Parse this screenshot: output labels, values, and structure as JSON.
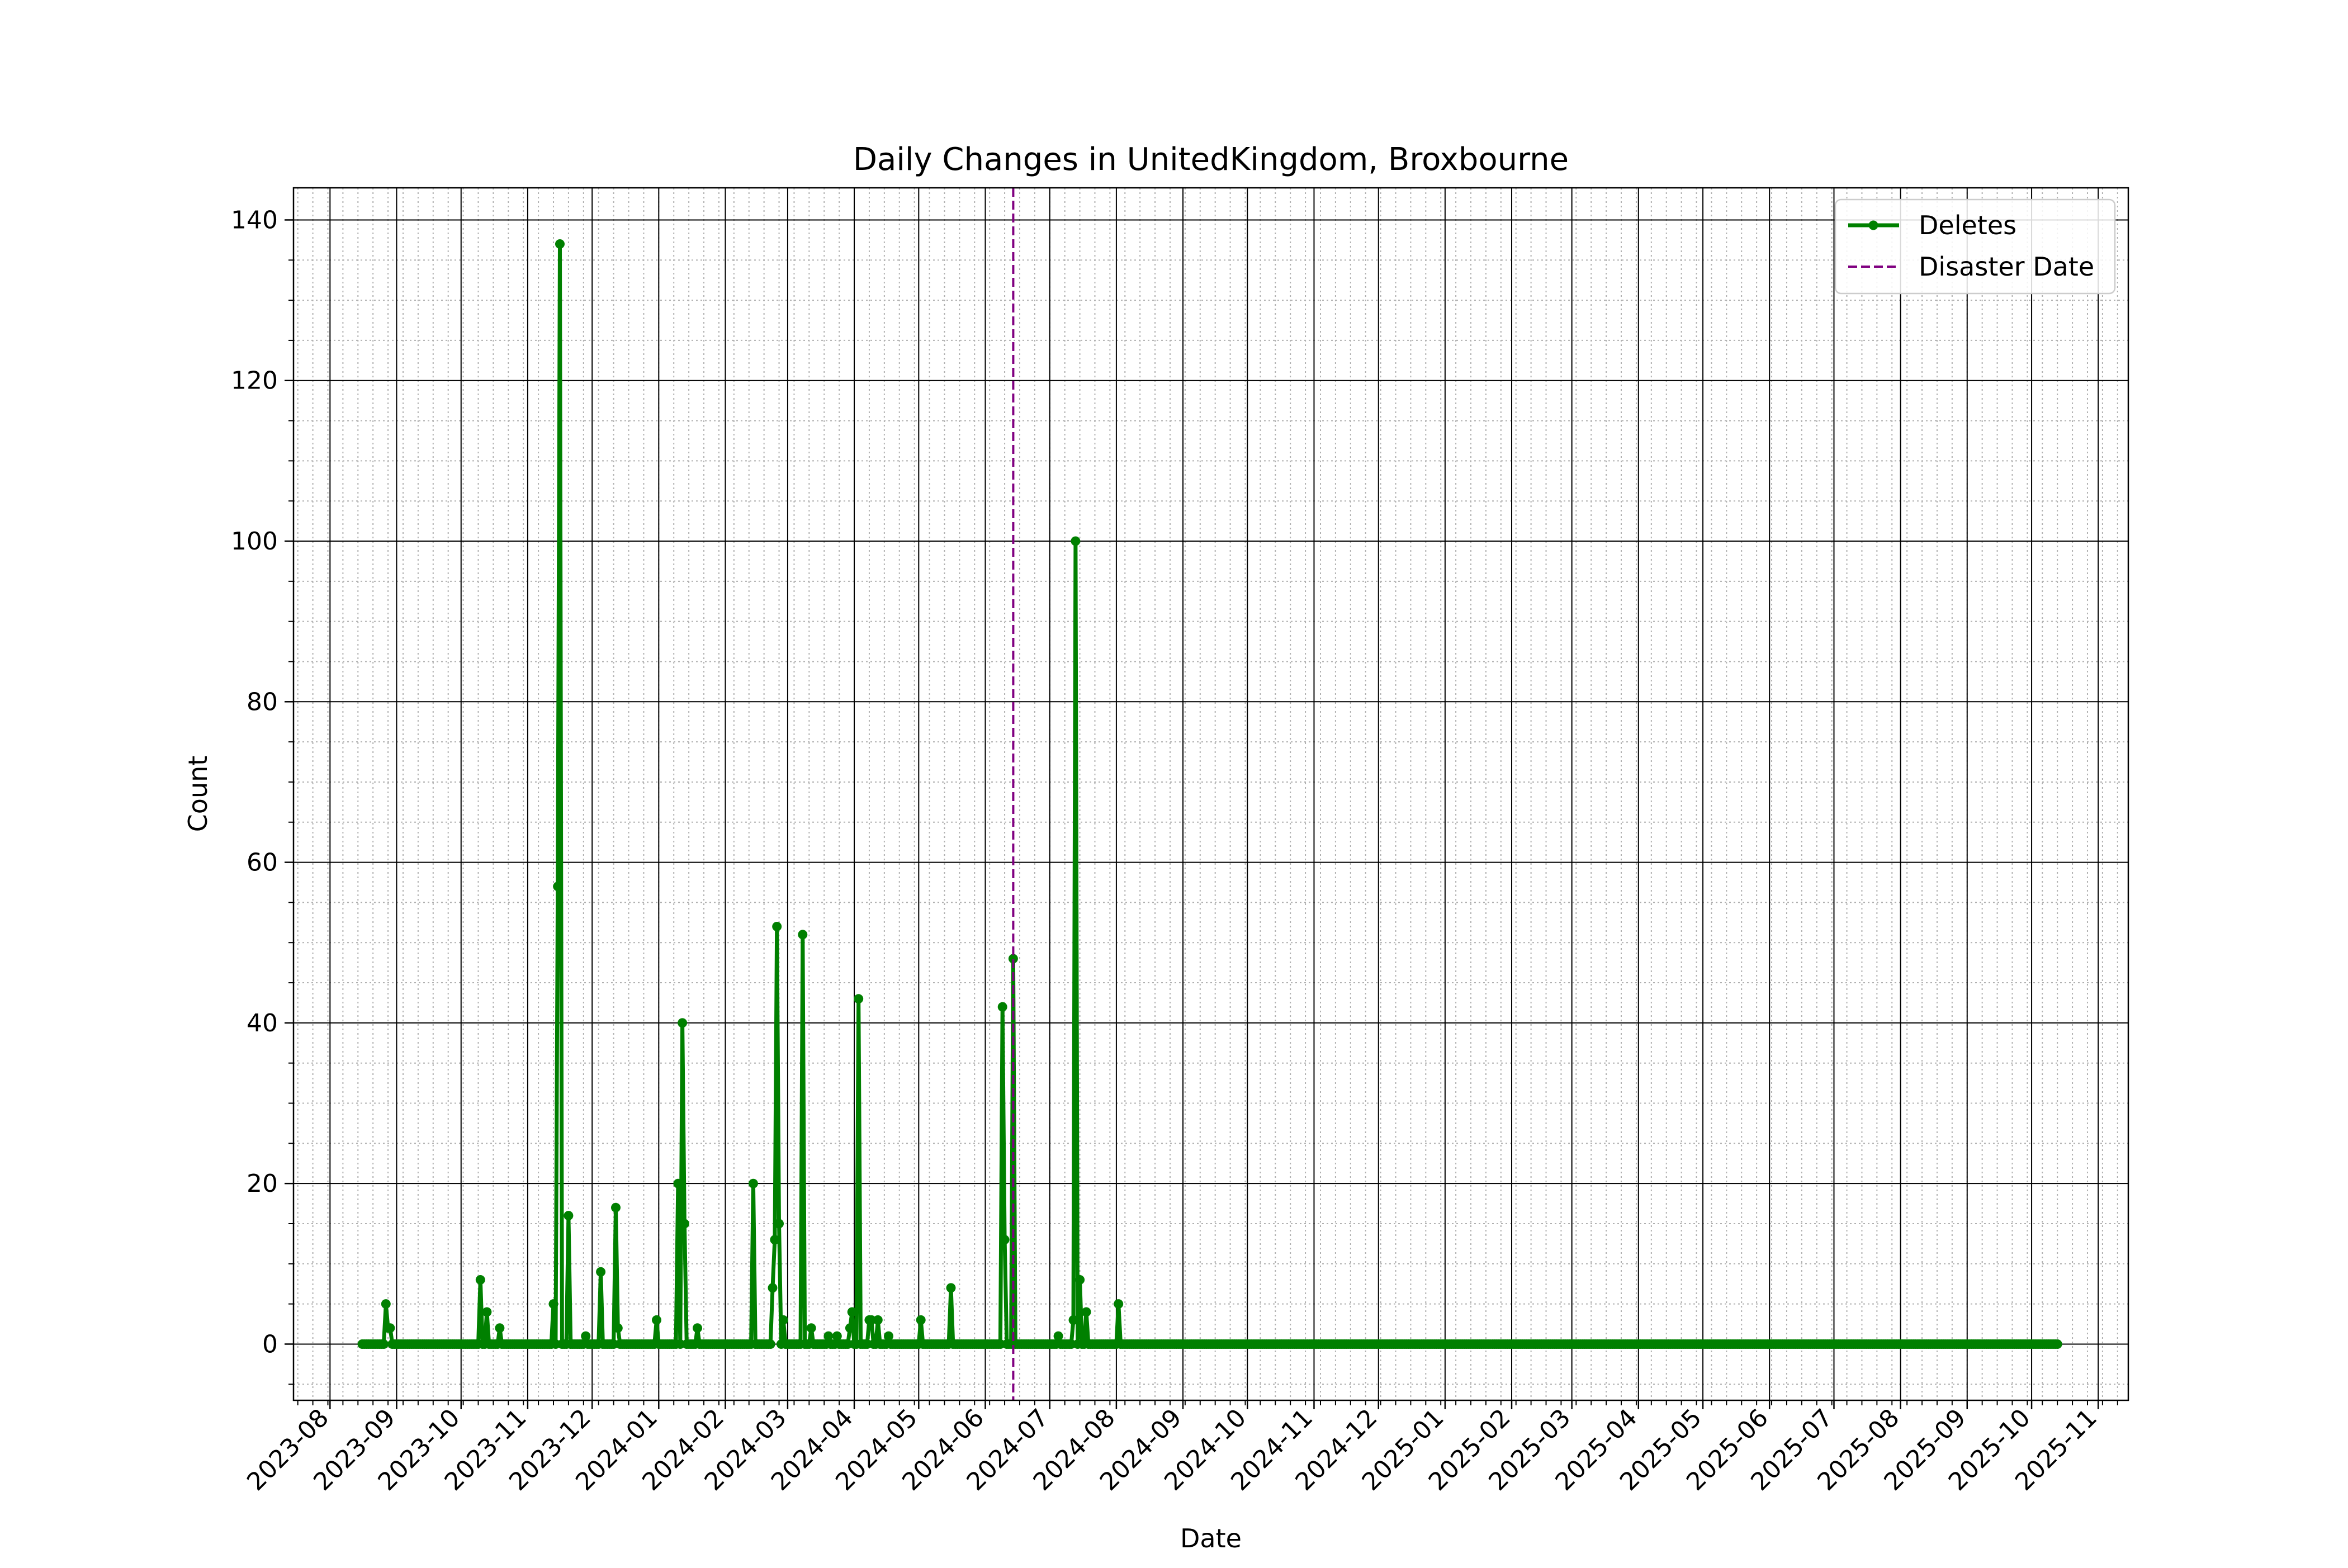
{
  "chart_data": {
    "type": "line",
    "title": "Daily Changes in UnitedKingdom, Broxbourne",
    "xlabel": "Date",
    "ylabel": "Count",
    "xlim": [
      "2023-07-15",
      "2025-11-15"
    ],
    "ylim": [
      -7,
      144
    ],
    "y_ticks": [
      0,
      20,
      40,
      60,
      80,
      100,
      120,
      140
    ],
    "x_ticks": [
      "2023-08",
      "2023-09",
      "2023-10",
      "2023-11",
      "2023-12",
      "2024-01",
      "2024-02",
      "2024-03",
      "2024-04",
      "2024-05",
      "2024-06",
      "2024-07",
      "2024-08",
      "2024-09",
      "2024-10",
      "2024-11",
      "2024-12",
      "2025-01",
      "2025-02",
      "2025-03",
      "2025-04",
      "2025-05",
      "2025-06",
      "2025-07",
      "2025-08",
      "2025-09",
      "2025-10",
      "2025-11"
    ],
    "grid": true,
    "legend_position": "top-right",
    "series": [
      {
        "name": "Deletes",
        "color": "#008000",
        "marker": "circle",
        "start_date": "2023-08-16",
        "end_date": "2025-10-13",
        "baseline_value": 0,
        "points": [
          [
            "2023-08-27",
            5
          ],
          [
            "2023-08-28",
            2
          ],
          [
            "2023-08-29",
            2
          ],
          [
            "2023-10-10",
            8
          ],
          [
            "2023-10-13",
            4
          ],
          [
            "2023-10-19",
            2
          ],
          [
            "2023-11-13",
            5
          ],
          [
            "2023-11-15",
            57
          ],
          [
            "2023-11-16",
            137
          ],
          [
            "2023-11-20",
            16
          ],
          [
            "2023-11-28",
            1
          ],
          [
            "2023-12-05",
            9
          ],
          [
            "2023-12-12",
            17
          ],
          [
            "2023-12-13",
            2
          ],
          [
            "2023-12-31",
            3
          ],
          [
            "2024-01-10",
            20
          ],
          [
            "2024-01-12",
            40
          ],
          [
            "2024-01-13",
            15
          ],
          [
            "2024-01-19",
            2
          ],
          [
            "2024-02-14",
            20
          ],
          [
            "2024-02-23",
            7
          ],
          [
            "2024-02-24",
            13
          ],
          [
            "2024-02-25",
            52
          ],
          [
            "2024-02-26",
            15
          ],
          [
            "2024-02-28",
            3
          ],
          [
            "2024-03-08",
            51
          ],
          [
            "2024-03-12",
            2
          ],
          [
            "2024-03-20",
            1
          ],
          [
            "2024-03-24",
            1
          ],
          [
            "2024-03-30",
            2
          ],
          [
            "2024-03-31",
            4
          ],
          [
            "2024-04-03",
            43
          ],
          [
            "2024-04-08",
            3
          ],
          [
            "2024-04-09",
            3
          ],
          [
            "2024-04-12",
            3
          ],
          [
            "2024-04-17",
            1
          ],
          [
            "2024-05-02",
            3
          ],
          [
            "2024-05-16",
            7
          ],
          [
            "2024-06-09",
            42
          ],
          [
            "2024-06-10",
            13
          ],
          [
            "2024-06-14",
            48
          ],
          [
            "2024-07-05",
            1
          ],
          [
            "2024-07-12",
            3
          ],
          [
            "2024-07-13",
            100
          ],
          [
            "2024-07-15",
            8
          ],
          [
            "2024-07-18",
            4
          ],
          [
            "2024-08-02",
            5
          ]
        ]
      },
      {
        "name": "Disaster Date",
        "color": "#800080",
        "line_style": "dashed",
        "x": "2024-06-14"
      }
    ]
  }
}
